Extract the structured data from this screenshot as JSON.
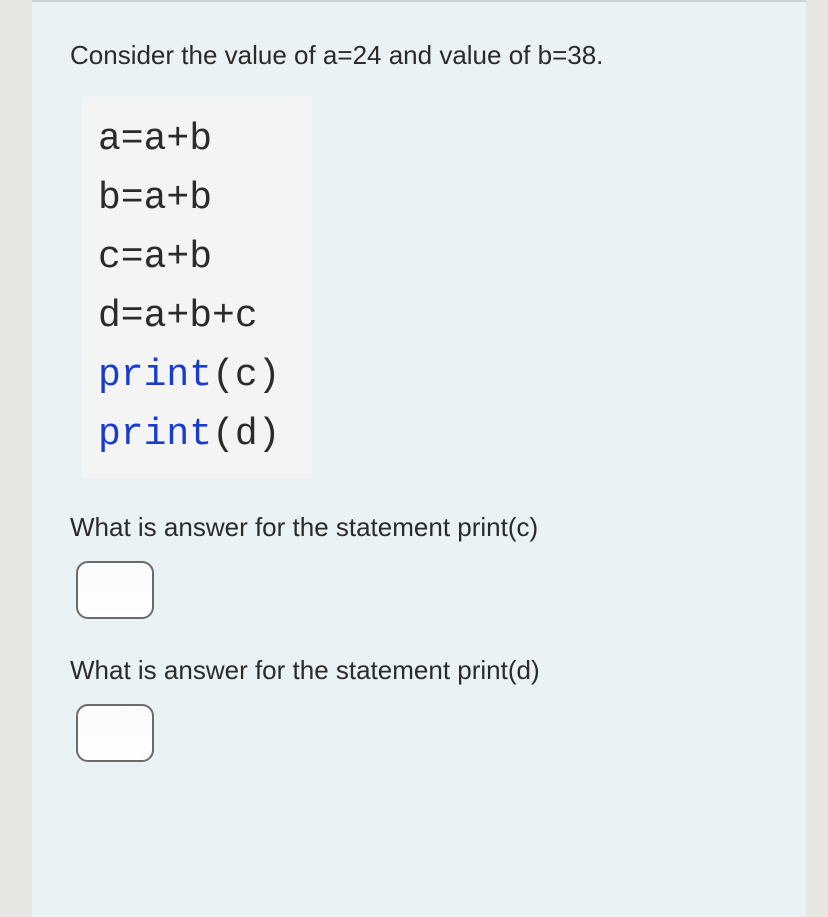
{
  "colors": {
    "page_bg": "#e8e6e3",
    "card_bg": "#eaf2f5",
    "card_border_top": "#c9d4d9",
    "code_bg": "#f4f4f4",
    "text": "#2b2b2b",
    "keyword": "#1a3ccc",
    "input_border": "#6b6b6b",
    "input_bg": "#ffffff"
  },
  "intro": "Consider the value of a=24 and value of b=38.",
  "code": {
    "lines": [
      {
        "plain": "a=a+b"
      },
      {
        "plain": "b=a+b"
      },
      {
        "plain": "c=a+b"
      },
      {
        "plain": "d=a+b+c"
      },
      {
        "kw": "print",
        "rest": "(c)"
      },
      {
        "kw": "print",
        "rest": "(d)"
      }
    ]
  },
  "q1": "What is answer for the statement print(c)",
  "q2": "What is answer for the statement print(d)",
  "answers": {
    "c": "",
    "d": ""
  }
}
